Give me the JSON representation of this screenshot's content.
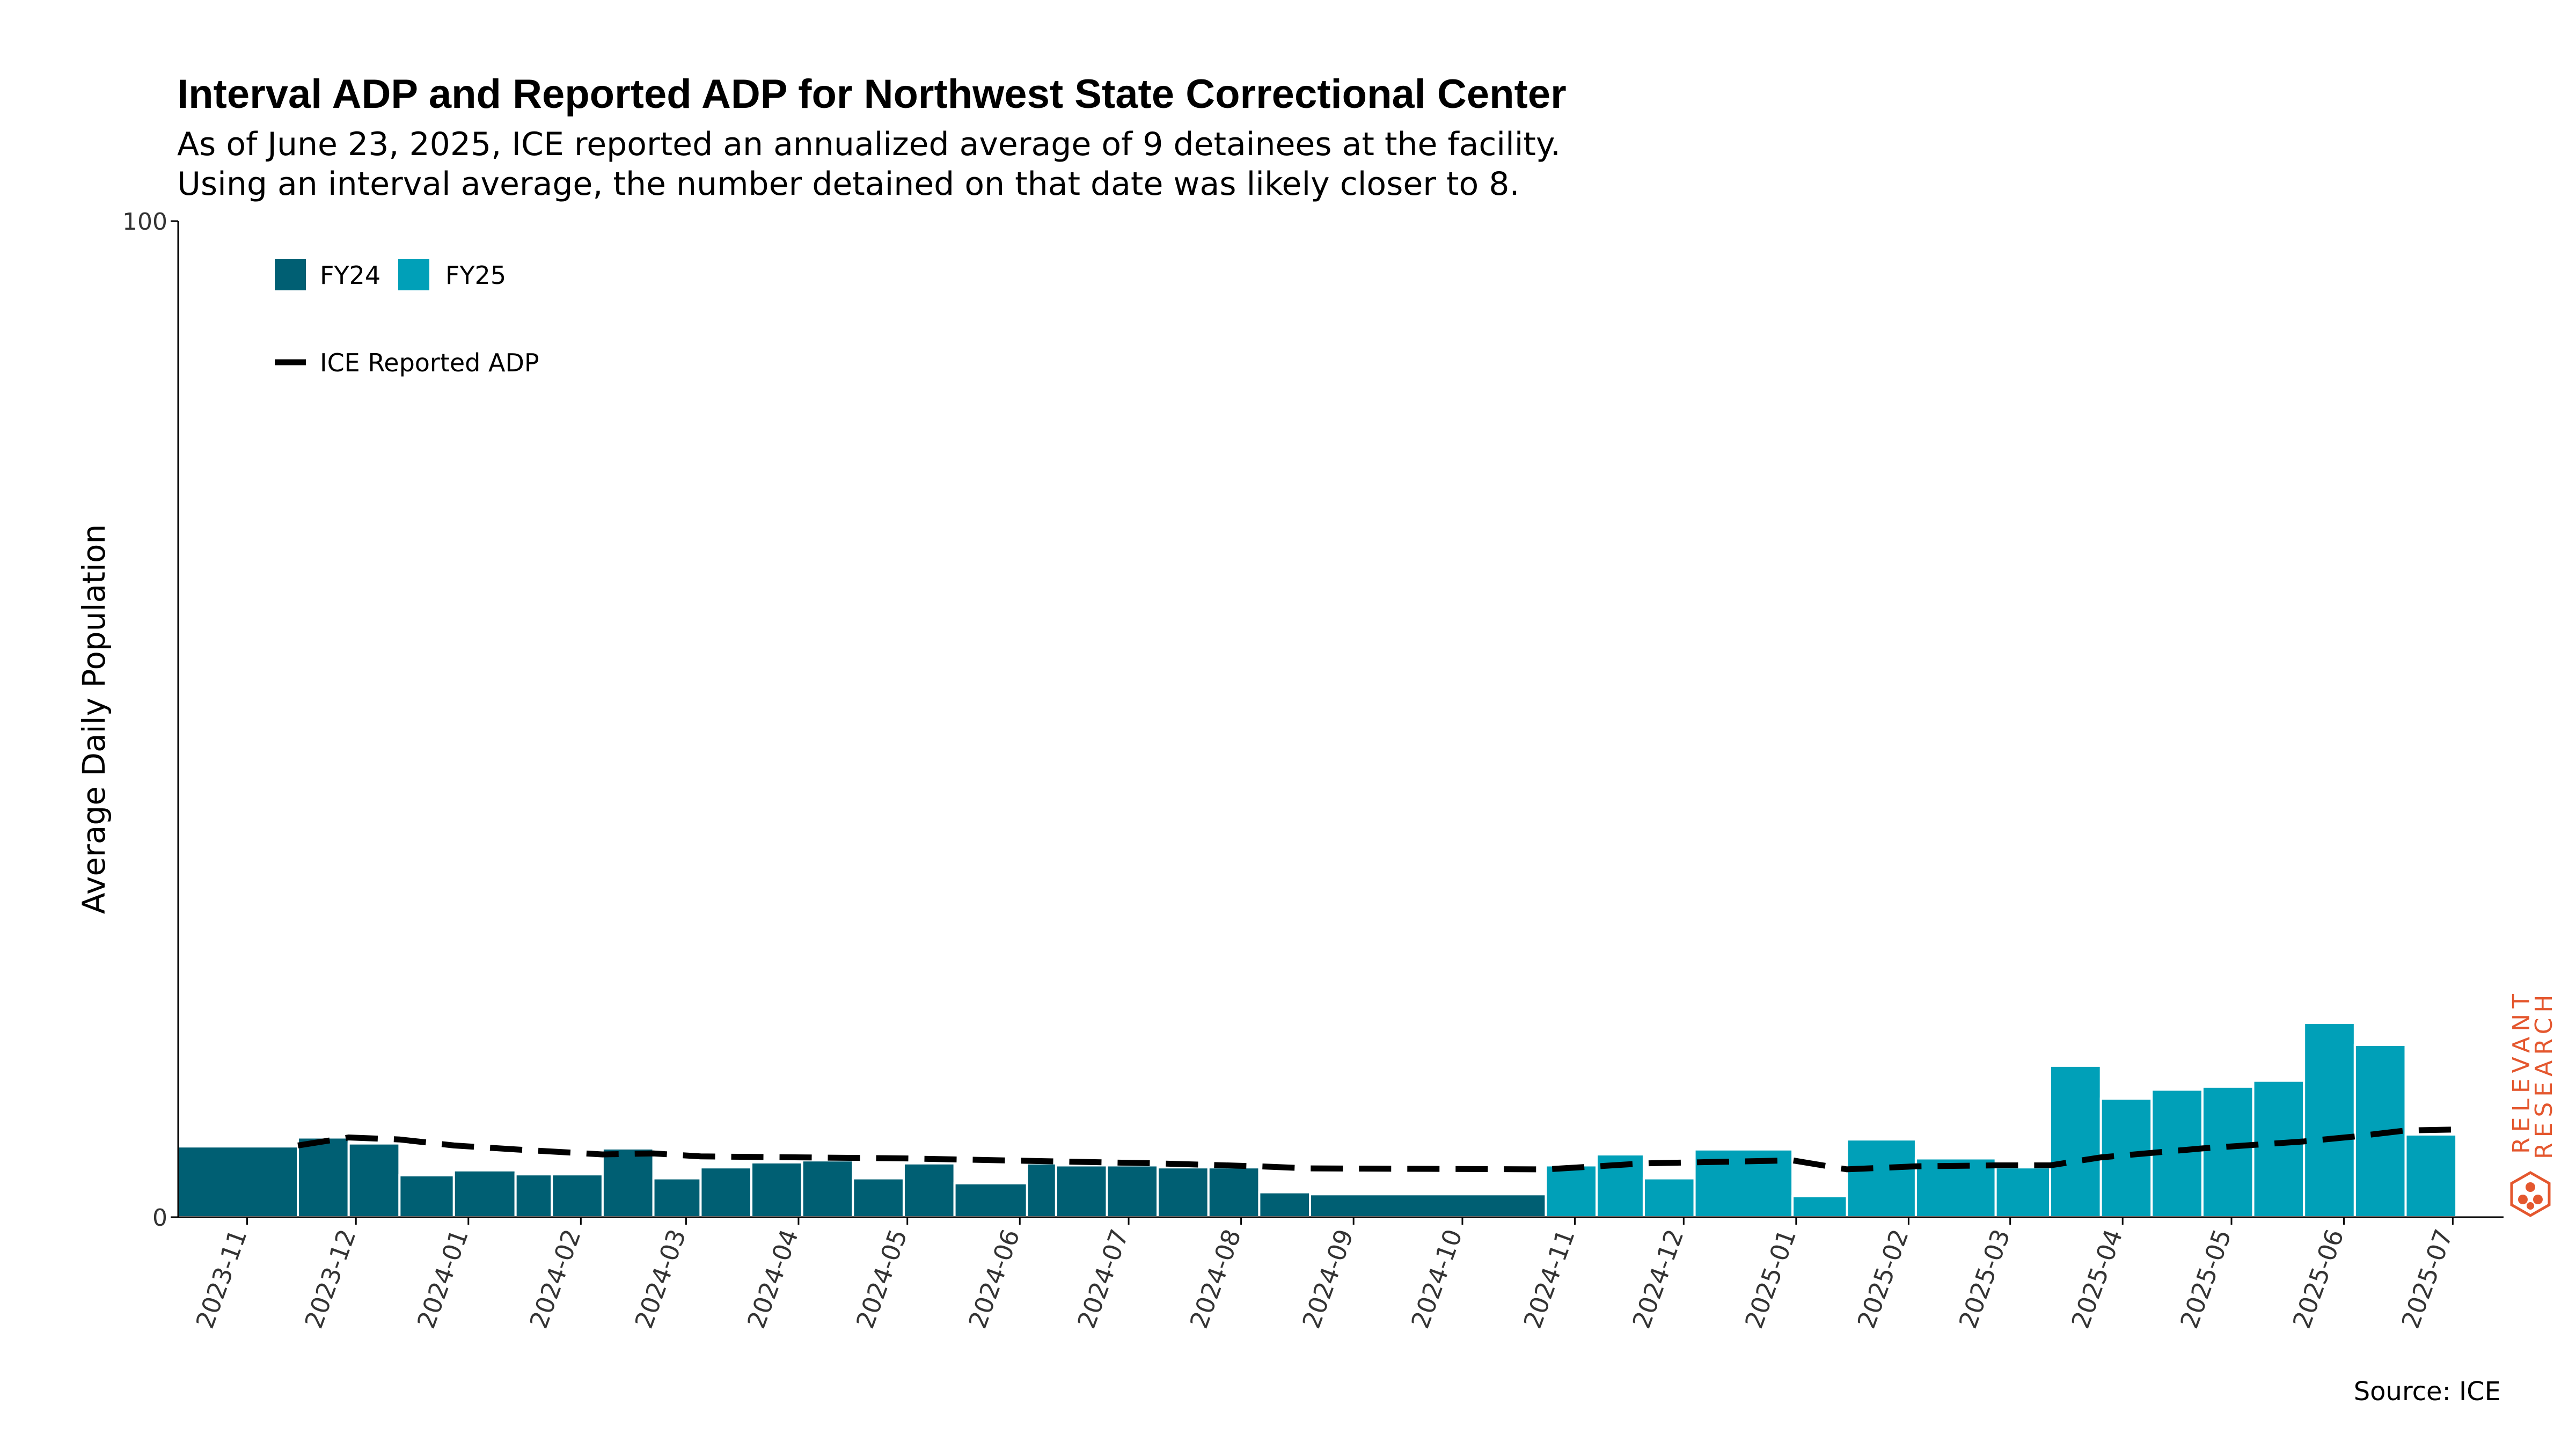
{
  "title": "Interval ADP and Reported ADP for Northwest State Correctional Center",
  "subtitle_line1": "As of June 23, 2025, ICE reported an annualized average of 9 detainees at the facility.",
  "subtitle_line2": "Using an interval average, the number detained on that date was likely closer to 8.",
  "source": "Source: ICE",
  "logo_text": "RELEVANT RESEARCH",
  "colors": {
    "fy24": "#005f73",
    "fy25": "#00a0b8",
    "reported_line": "#000000",
    "logo": "#e4572e"
  },
  "chart_data": {
    "type": "bar",
    "ylabel": "Average Daily Population",
    "ylim": [
      0,
      100
    ],
    "yticks": [
      "0",
      "100"
    ],
    "x_tick_labels": [
      "2023-11",
      "2023-12",
      "2024-01",
      "2024-02",
      "2024-03",
      "2024-04",
      "2024-05",
      "2024-06",
      "2024-07",
      "2024-08",
      "2024-09",
      "2024-10",
      "2024-11",
      "2024-12",
      "2025-01",
      "2025-02",
      "2025-03",
      "2025-04",
      "2025-05",
      "2025-06",
      "2025-07"
    ],
    "legend": {
      "fy24": "FY24",
      "fy25": "FY25",
      "line": "ICE Reported ADP",
      "placement": "top-left"
    },
    "interval_bars": [
      {
        "start": "2023-10-13",
        "end": "2023-11-15",
        "value": 7.1,
        "fy": "FY24"
      },
      {
        "start": "2023-11-15",
        "end": "2023-11-29",
        "value": 8.0,
        "fy": "FY24"
      },
      {
        "start": "2023-11-29",
        "end": "2023-12-13",
        "value": 7.4,
        "fy": "FY24"
      },
      {
        "start": "2023-12-13",
        "end": "2023-12-28",
        "value": 4.2,
        "fy": "FY24"
      },
      {
        "start": "2023-12-28",
        "end": "2024-01-14",
        "value": 4.7,
        "fy": "FY24"
      },
      {
        "start": "2024-01-14",
        "end": "2024-01-24",
        "value": 4.3,
        "fy": "FY24"
      },
      {
        "start": "2024-01-24",
        "end": "2024-02-07",
        "value": 4.3,
        "fy": "FY24"
      },
      {
        "start": "2024-02-07",
        "end": "2024-02-21",
        "value": 6.9,
        "fy": "FY24"
      },
      {
        "start": "2024-02-21",
        "end": "2024-03-05",
        "value": 3.9,
        "fy": "FY24"
      },
      {
        "start": "2024-03-05",
        "end": "2024-03-19",
        "value": 5.0,
        "fy": "FY24"
      },
      {
        "start": "2024-03-19",
        "end": "2024-04-02",
        "value": 5.5,
        "fy": "FY24"
      },
      {
        "start": "2024-04-02",
        "end": "2024-04-16",
        "value": 5.7,
        "fy": "FY24"
      },
      {
        "start": "2024-04-16",
        "end": "2024-04-30",
        "value": 3.9,
        "fy": "FY24"
      },
      {
        "start": "2024-04-30",
        "end": "2024-05-14",
        "value": 5.4,
        "fy": "FY24"
      },
      {
        "start": "2024-05-14",
        "end": "2024-06-03",
        "value": 3.4,
        "fy": "FY24"
      },
      {
        "start": "2024-06-03",
        "end": "2024-06-11",
        "value": 5.4,
        "fy": "FY24"
      },
      {
        "start": "2024-06-11",
        "end": "2024-06-25",
        "value": 5.2,
        "fy": "FY24"
      },
      {
        "start": "2024-06-25",
        "end": "2024-07-09",
        "value": 5.2,
        "fy": "FY24"
      },
      {
        "start": "2024-07-09",
        "end": "2024-07-23",
        "value": 5.0,
        "fy": "FY24"
      },
      {
        "start": "2024-07-23",
        "end": "2024-08-06",
        "value": 5.0,
        "fy": "FY24"
      },
      {
        "start": "2024-08-06",
        "end": "2024-08-20",
        "value": 2.5,
        "fy": "FY24"
      },
      {
        "start": "2024-08-20",
        "end": "2024-10-24",
        "value": 2.3,
        "fy": "FY24"
      },
      {
        "start": "2024-10-24",
        "end": "2024-11-07",
        "value": 5.2,
        "fy": "FY25"
      },
      {
        "start": "2024-11-07",
        "end": "2024-11-20",
        "value": 6.3,
        "fy": "FY25"
      },
      {
        "start": "2024-11-20",
        "end": "2024-12-04",
        "value": 3.9,
        "fy": "FY25"
      },
      {
        "start": "2024-12-04",
        "end": "2024-12-31",
        "value": 6.8,
        "fy": "FY25"
      },
      {
        "start": "2024-12-31",
        "end": "2025-01-15",
        "value": 2.1,
        "fy": "FY25"
      },
      {
        "start": "2025-01-15",
        "end": "2025-02-03",
        "value": 7.8,
        "fy": "FY25"
      },
      {
        "start": "2025-02-03",
        "end": "2025-02-25",
        "value": 5.9,
        "fy": "FY25"
      },
      {
        "start": "2025-02-25",
        "end": "2025-03-12",
        "value": 5.0,
        "fy": "FY25"
      },
      {
        "start": "2025-03-12",
        "end": "2025-03-26",
        "value": 15.2,
        "fy": "FY25"
      },
      {
        "start": "2025-03-26",
        "end": "2025-04-09",
        "value": 11.9,
        "fy": "FY25"
      },
      {
        "start": "2025-04-09",
        "end": "2025-04-23",
        "value": 12.8,
        "fy": "FY25"
      },
      {
        "start": "2025-04-23",
        "end": "2025-05-07",
        "value": 13.1,
        "fy": "FY25"
      },
      {
        "start": "2025-05-07",
        "end": "2025-05-21",
        "value": 13.7,
        "fy": "FY25"
      },
      {
        "start": "2025-05-21",
        "end": "2025-06-04",
        "value": 19.5,
        "fy": "FY25"
      },
      {
        "start": "2025-06-04",
        "end": "2025-06-18",
        "value": 17.3,
        "fy": "FY25"
      },
      {
        "start": "2025-06-18",
        "end": "2025-07-02",
        "value": 8.3,
        "fy": "FY25"
      }
    ],
    "reported_adp": {
      "name": "ICE Reported ADP",
      "points": [
        {
          "date": "2023-11-15",
          "value": 7.2
        },
        {
          "date": "2023-11-29",
          "value": 8.0
        },
        {
          "date": "2023-12-13",
          "value": 7.8
        },
        {
          "date": "2023-12-28",
          "value": 7.2
        },
        {
          "date": "2024-01-14",
          "value": 6.8
        },
        {
          "date": "2024-02-07",
          "value": 6.3
        },
        {
          "date": "2024-02-21",
          "value": 6.4
        },
        {
          "date": "2024-03-05",
          "value": 6.1
        },
        {
          "date": "2024-04-02",
          "value": 6.0
        },
        {
          "date": "2024-04-30",
          "value": 5.9
        },
        {
          "date": "2024-06-11",
          "value": 5.6
        },
        {
          "date": "2024-07-09",
          "value": 5.4
        },
        {
          "date": "2024-08-06",
          "value": 5.1
        },
        {
          "date": "2024-08-20",
          "value": 4.9
        },
        {
          "date": "2024-10-24",
          "value": 4.8
        },
        {
          "date": "2024-11-07",
          "value": 5.1
        },
        {
          "date": "2024-11-20",
          "value": 5.4
        },
        {
          "date": "2024-12-04",
          "value": 5.5
        },
        {
          "date": "2024-12-31",
          "value": 5.7
        },
        {
          "date": "2025-01-15",
          "value": 4.8
        },
        {
          "date": "2025-02-03",
          "value": 5.1
        },
        {
          "date": "2025-02-25",
          "value": 5.2
        },
        {
          "date": "2025-03-12",
          "value": 5.2
        },
        {
          "date": "2025-03-26",
          "value": 6.0
        },
        {
          "date": "2025-04-23",
          "value": 6.9
        },
        {
          "date": "2025-05-21",
          "value": 7.6
        },
        {
          "date": "2025-06-04",
          "value": 8.1
        },
        {
          "date": "2025-06-18",
          "value": 8.7
        },
        {
          "date": "2025-07-02",
          "value": 8.8
        }
      ]
    }
  }
}
